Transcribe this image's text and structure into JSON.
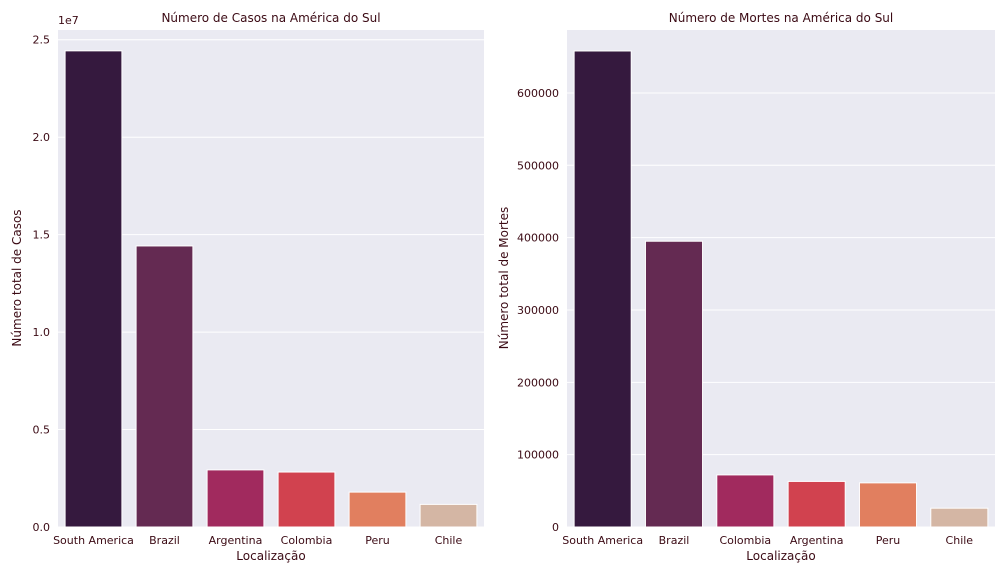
{
  "chart_data": [
    {
      "type": "bar",
      "title": "Número de Casos na América do Sul",
      "xlabel": "Localização",
      "ylabel": "Número total de Casos",
      "offset_text": "1e7",
      "categories": [
        "South America",
        "Brazil",
        "Argentina",
        "Colombia",
        "Peru",
        "Chile"
      ],
      "values": [
        24430000,
        14420000,
        2930000,
        2820000,
        1790000,
        1160000
      ],
      "ylim": [
        0,
        25500000
      ],
      "yticks": [
        0,
        5000000,
        10000000,
        15000000,
        20000000,
        25000000
      ],
      "ytick_labels": [
        "0.0",
        "0.5",
        "1.0",
        "1.5",
        "2.0",
        "2.5"
      ],
      "colors": [
        "#35193e",
        "#642a52",
        "#a12a5e",
        "#d1424f",
        "#e17f5f",
        "#d4b6a4"
      ],
      "background": "#eaeaf2",
      "grid": true
    },
    {
      "type": "bar",
      "title": "Número de Mortes na América do Sul",
      "xlabel": "Localização",
      "ylabel": "Número total de Mortes",
      "categories": [
        "South America",
        "Brazil",
        "Colombia",
        "Argentina",
        "Peru",
        "Chile"
      ],
      "values": [
        658000,
        395000,
        72000,
        63000,
        61000,
        26000
      ],
      "ylim": [
        0,
        687000
      ],
      "yticks": [
        0,
        100000,
        200000,
        300000,
        400000,
        500000,
        600000
      ],
      "ytick_labels": [
        "0",
        "100000",
        "200000",
        "300000",
        "400000",
        "500000",
        "600000"
      ],
      "colors": [
        "#35193e",
        "#642a52",
        "#a12a5e",
        "#d1424f",
        "#e17f5f",
        "#d4b6a4"
      ],
      "background": "#eaeaf2",
      "grid": true
    }
  ]
}
